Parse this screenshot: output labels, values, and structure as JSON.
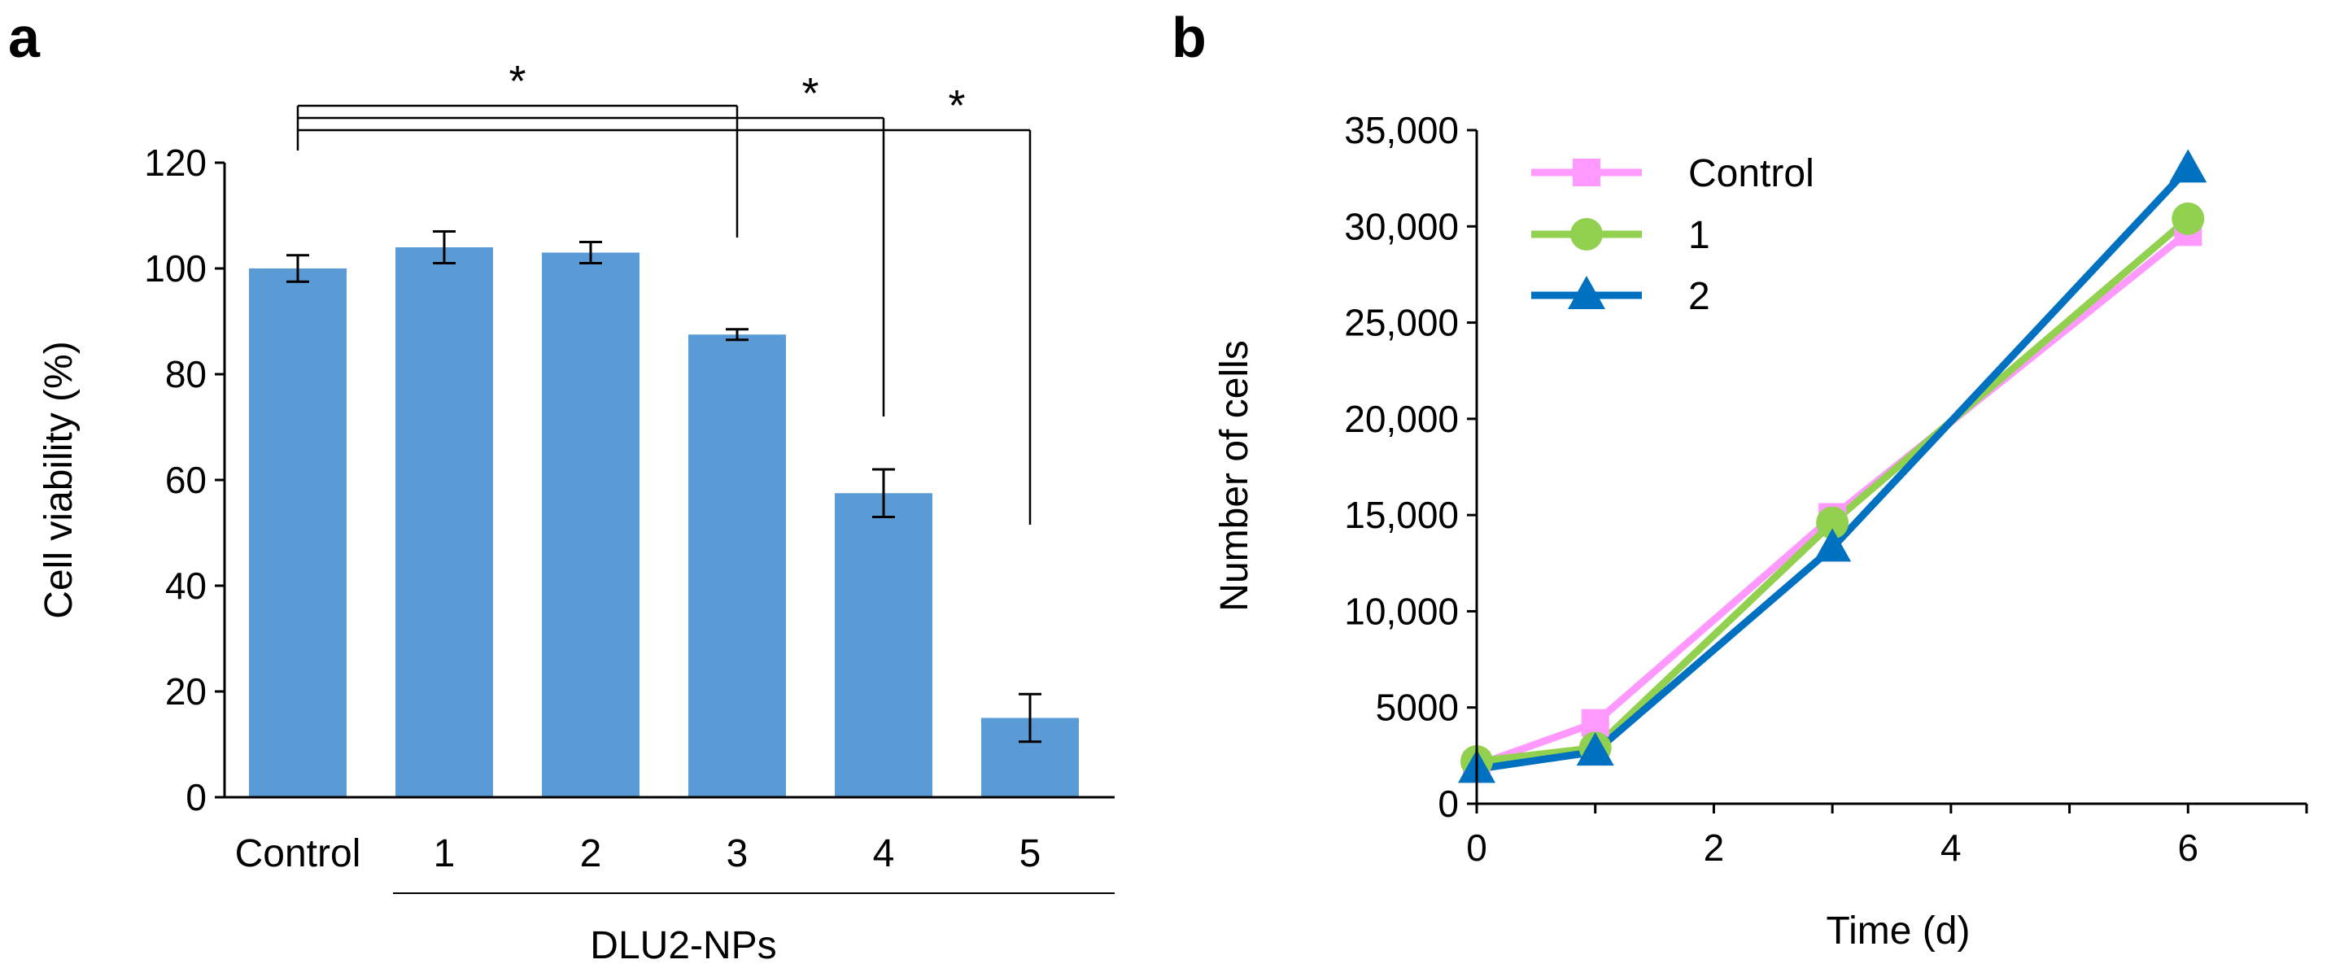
{
  "chart_data": [
    {
      "panel_label": "a",
      "type": "bar",
      "categories": [
        "Control",
        "1",
        "2",
        "3",
        "4",
        "5"
      ],
      "values": [
        100,
        104,
        103,
        87.5,
        57.5,
        15
      ],
      "errors": [
        2.5,
        3,
        2,
        1,
        4.5,
        4.5
      ],
      "ylabel": "Cell viability (%)",
      "xlabel": "",
      "group_label": "DLU2-NPs",
      "ylim": [
        0,
        120
      ],
      "yticks": [
        0,
        20,
        40,
        60,
        80,
        100,
        120
      ],
      "ytick_labels": [
        "0",
        "20",
        "40",
        "60",
        "80",
        "100",
        "120"
      ],
      "bar_color": "#5B9BD5",
      "significance": [
        {
          "from": "Control",
          "to": "3",
          "label": "*"
        },
        {
          "from": "Control",
          "to": "4",
          "label": "*"
        },
        {
          "from": "Control",
          "to": "5",
          "label": "*"
        }
      ]
    },
    {
      "panel_label": "b",
      "type": "line",
      "xlabel": "Time (d)",
      "ylabel": "Number of cells",
      "xlim": [
        0,
        7
      ],
      "ylim": [
        0,
        35000
      ],
      "xticks": [
        0,
        2,
        4,
        6
      ],
      "xtick_labels": [
        "0",
        "2",
        "4",
        "6"
      ],
      "yticks": [
        0,
        5000,
        10000,
        15000,
        20000,
        25000,
        30000,
        35000
      ],
      "ytick_labels": [
        "0",
        "5000",
        "10,000",
        "15,000",
        "20,000",
        "25,000",
        "30,000",
        "35,000"
      ],
      "legend_position": "top-left",
      "series": [
        {
          "name": "Control",
          "marker": "square",
          "color": "#FF99FF",
          "x": [
            0,
            1,
            3,
            6
          ],
          "y": [
            2000,
            4200,
            14900,
            29700
          ]
        },
        {
          "name": "1",
          "marker": "circle",
          "color": "#92D050",
          "x": [
            0,
            1,
            3,
            6
          ],
          "y": [
            2200,
            2900,
            14600,
            30400
          ]
        },
        {
          "name": "2",
          "marker": "triangle",
          "color": "#0070C0",
          "x": [
            0,
            1,
            3,
            6
          ],
          "y": [
            1800,
            2700,
            13300,
            33000
          ]
        }
      ]
    }
  ]
}
